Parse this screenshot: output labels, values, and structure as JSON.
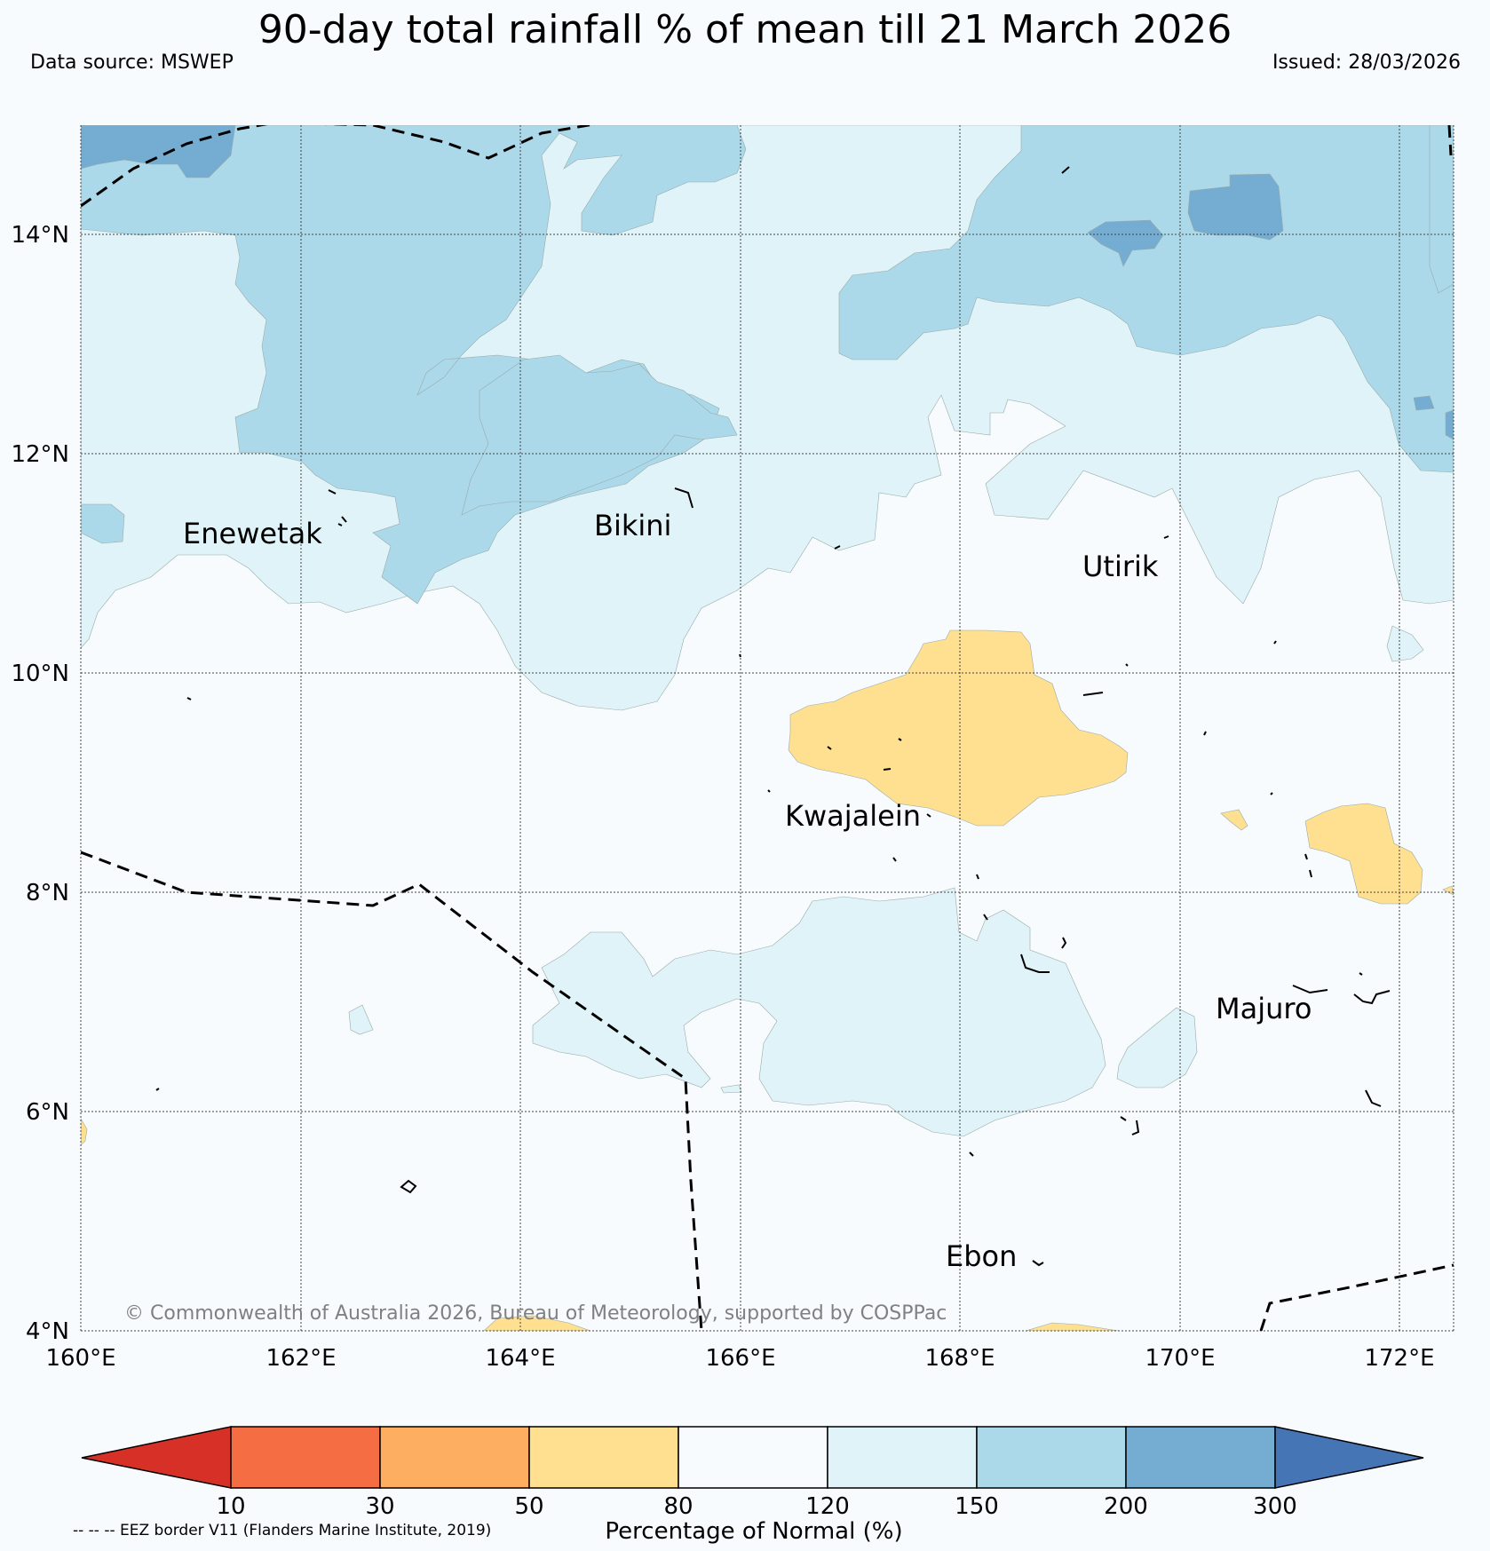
{
  "header": {
    "title": "90-day total rainfall % of mean till 21 March 2026",
    "source": "Data source: MSWEP",
    "issued": "Issued: 28/03/2026"
  },
  "map": {
    "lon_range": [
      160,
      172.5
    ],
    "lat_range": [
      4,
      15
    ],
    "lon_ticks": [
      "160°E",
      "162°E",
      "164°E",
      "166°E",
      "168°E",
      "170°E",
      "172°E"
    ],
    "lat_ticks": [
      "14°N",
      "12°N",
      "10°N",
      "8°N",
      "6°N",
      "4°N"
    ],
    "places": {
      "enewetak": "Enewetak",
      "bikini": "Bikini",
      "utirik": "Utirik",
      "kwajalein": "Kwajalein",
      "majuro": "Majuro",
      "ebon": "Ebon"
    },
    "copyright": "© Commonwealth of Australia 2026, Bureau of Meteorology, supported by COSPPac",
    "eez_note": "-- -- -- EEZ border V11 (Flanders Marine Institute, 2019)"
  },
  "colorbar": {
    "title": "Percentage of Normal (%)",
    "labels": [
      "10",
      "30",
      "50",
      "80",
      "120",
      "150",
      "200",
      "300"
    ],
    "colors": [
      "#d73027",
      "#f46d43",
      "#fdae61",
      "#fee090",
      "#f7fbfd",
      "#e0f3f8",
      "#abd9e9",
      "#74add1",
      "#4575b4"
    ]
  }
}
